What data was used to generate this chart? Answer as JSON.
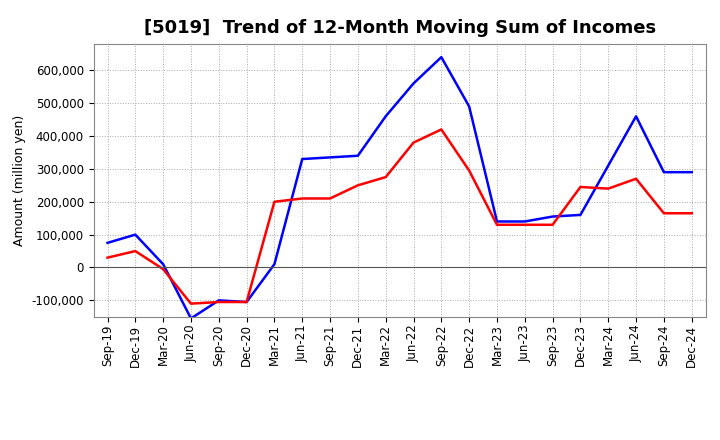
{
  "title": "[5019]  Trend of 12-Month Moving Sum of Incomes",
  "ylabel": "Amount (million yen)",
  "x_labels": [
    "Sep-19",
    "Dec-19",
    "Mar-20",
    "Jun-20",
    "Sep-20",
    "Dec-20",
    "Mar-21",
    "Jun-21",
    "Sep-21",
    "Dec-21",
    "Mar-22",
    "Jun-22",
    "Sep-22",
    "Dec-22",
    "Mar-23",
    "Jun-23",
    "Sep-23",
    "Dec-23",
    "Mar-24",
    "Jun-24",
    "Sep-24",
    "Dec-24"
  ],
  "ordinary_income_full": [
    75000,
    100000,
    10000,
    -155000,
    -100000,
    -105000,
    10000,
    330000,
    335000,
    340000,
    460000,
    560000,
    640000,
    490000,
    140000,
    140000,
    155000,
    160000,
    310000,
    460000,
    290000,
    290000
  ],
  "net_income_full": [
    30000,
    50000,
    -5000,
    -110000,
    -105000,
    -105000,
    200000,
    210000,
    210000,
    250000,
    275000,
    380000,
    420000,
    295000,
    130000,
    130000,
    130000,
    245000,
    240000,
    270000,
    165000,
    165000
  ],
  "ylim": [
    -150000,
    680000
  ],
  "yticks": [
    -100000,
    0,
    100000,
    200000,
    300000,
    400000,
    500000,
    600000
  ],
  "line_color_ordinary": "#0000FF",
  "line_color_net": "#FF0000",
  "bg_color": "#FFFFFF",
  "grid_color": "#AAAAAA",
  "title_fontsize": 13,
  "ylabel_fontsize": 9,
  "tick_fontsize": 8.5
}
